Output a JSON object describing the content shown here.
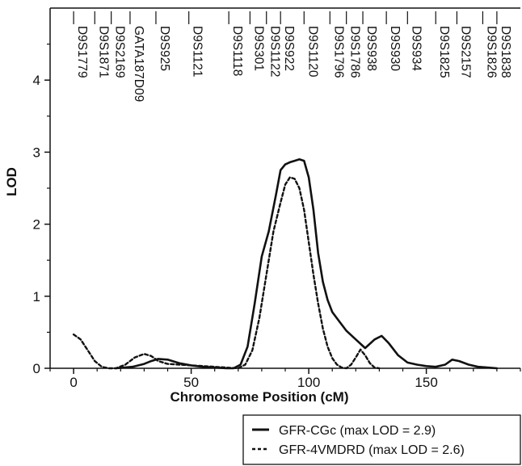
{
  "chart_data": {
    "type": "line",
    "xlabel": "Chromosome Position (cM)",
    "ylabel": "LOD",
    "xlim": [
      -10,
      190
    ],
    "ylim": [
      0,
      5
    ],
    "x_ticks": [
      0,
      50,
      100,
      150
    ],
    "y_ticks": [
      0,
      1,
      2,
      3,
      4
    ],
    "grid": false,
    "legend_position": "bottom-right, below plot",
    "markers": [
      {
        "name": "D9S1779",
        "x": 0
      },
      {
        "name": "D9S1871",
        "x": 9
      },
      {
        "name": "D9S2169",
        "x": 16
      },
      {
        "name": "GATA187D09",
        "x": 24
      },
      {
        "name": "D9S925",
        "x": 35
      },
      {
        "name": "D9S1121",
        "x": 49
      },
      {
        "name": "D9S1118",
        "x": 66
      },
      {
        "name": "D9S301",
        "x": 75
      },
      {
        "name": "D9S1122",
        "x": 82
      },
      {
        "name": "D9S922",
        "x": 88
      },
      {
        "name": "D9S1120",
        "x": 98
      },
      {
        "name": "D9S1796",
        "x": 109
      },
      {
        "name": "D9S1786",
        "x": 116
      },
      {
        "name": "D9S938",
        "x": 123
      },
      {
        "name": "D9S930",
        "x": 133
      },
      {
        "name": "D9S934",
        "x": 142
      },
      {
        "name": "D9S1825",
        "x": 154
      },
      {
        "name": "D9S2157",
        "x": 163
      },
      {
        "name": "D9S1826",
        "x": 174
      },
      {
        "name": "D9S1838",
        "x": 180
      }
    ],
    "series": [
      {
        "name": "GFR-CGc (max LOD = 2.9)",
        "style": "solid",
        "x": [
          18,
          25,
          30,
          33,
          36,
          40,
          45,
          50,
          55,
          60,
          65,
          68,
          71,
          74,
          77,
          80,
          83,
          86,
          88,
          90,
          92,
          94,
          96,
          98,
          100,
          102,
          104,
          106,
          108,
          110,
          113,
          116,
          120,
          124,
          128,
          131,
          134,
          138,
          142,
          146,
          150,
          154,
          158,
          161,
          164,
          168,
          172,
          176,
          180
        ],
        "y": [
          0.0,
          0.02,
          0.06,
          0.1,
          0.13,
          0.12,
          0.07,
          0.04,
          0.02,
          0.01,
          0.0,
          0.0,
          0.05,
          0.3,
          0.9,
          1.55,
          1.9,
          2.4,
          2.75,
          2.83,
          2.86,
          2.88,
          2.9,
          2.88,
          2.65,
          2.2,
          1.6,
          1.2,
          0.95,
          0.78,
          0.65,
          0.52,
          0.4,
          0.28,
          0.4,
          0.45,
          0.35,
          0.18,
          0.08,
          0.05,
          0.03,
          0.02,
          0.05,
          0.12,
          0.1,
          0.05,
          0.02,
          0.01,
          0.0
        ]
      },
      {
        "name": "GFR-4VMDRD (max LOD = 2.6)",
        "style": "dashed",
        "x": [
          0,
          3,
          6,
          9,
          12,
          15,
          18,
          22,
          26,
          30,
          33,
          36,
          40,
          45,
          50,
          55,
          60,
          65,
          70,
          73,
          76,
          79,
          82,
          85,
          88,
          90,
          92,
          94,
          96,
          98,
          100,
          102,
          104,
          106,
          108,
          110,
          112,
          114,
          116,
          118,
          120,
          122,
          124,
          126,
          128,
          130
        ],
        "y": [
          0.47,
          0.4,
          0.25,
          0.1,
          0.02,
          0.0,
          0.0,
          0.05,
          0.15,
          0.2,
          0.17,
          0.1,
          0.06,
          0.05,
          0.04,
          0.03,
          0.02,
          0.01,
          0.0,
          0.05,
          0.25,
          0.7,
          1.3,
          1.9,
          2.3,
          2.55,
          2.65,
          2.63,
          2.5,
          2.2,
          1.75,
          1.3,
          0.9,
          0.55,
          0.3,
          0.14,
          0.05,
          0.01,
          0.0,
          0.05,
          0.15,
          0.26,
          0.18,
          0.07,
          0.01,
          0.0
        ]
      }
    ]
  }
}
